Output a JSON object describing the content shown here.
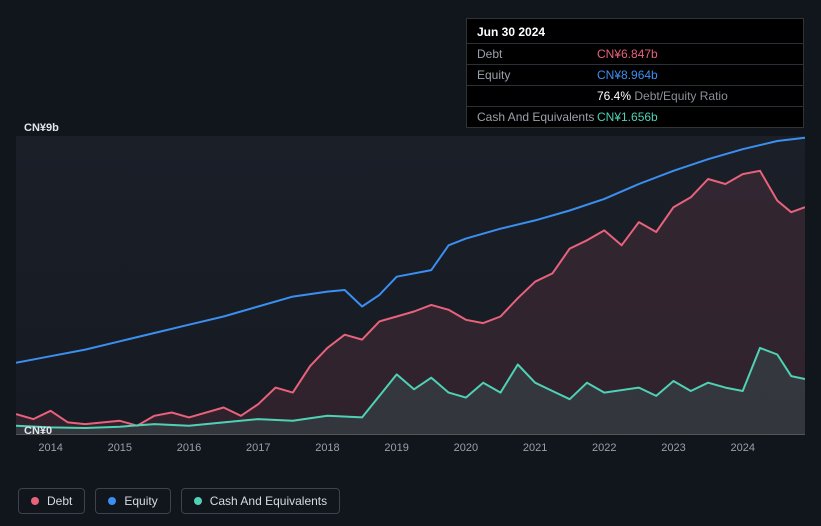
{
  "background_color": "#11151c",
  "plot_background": "#1a1f28",
  "tooltip": {
    "date": "Jun 30 2024",
    "rows": [
      {
        "label": "Debt",
        "value": "CN¥6.847b",
        "color": "#e8627c"
      },
      {
        "label": "Equity",
        "value": "CN¥8.964b",
        "color": "#3b8ff0"
      },
      {
        "label": "",
        "value": "76.4%",
        "suffix": "Debt/Equity Ratio",
        "color": "#ffffff"
      },
      {
        "label": "Cash And Equivalents",
        "value": "CN¥1.656b",
        "color": "#4fd1b5"
      }
    ]
  },
  "chart": {
    "type": "line",
    "y_max_label": "CN¥9b",
    "y_min_label": "CN¥0",
    "ylim": [
      0,
      9
    ],
    "x_years": [
      "2014",
      "2015",
      "2016",
      "2017",
      "2018",
      "2019",
      "2020",
      "2021",
      "2022",
      "2023",
      "2024"
    ],
    "x_range": [
      2013.5,
      2024.9
    ],
    "line_width": 2,
    "series": [
      {
        "name": "Equity",
        "color": "#3b8ff0",
        "fill_opacity": 0,
        "points": [
          [
            2013.5,
            2.15
          ],
          [
            2014,
            2.35
          ],
          [
            2014.5,
            2.55
          ],
          [
            2015,
            2.8
          ],
          [
            2015.5,
            3.05
          ],
          [
            2016,
            3.3
          ],
          [
            2016.5,
            3.55
          ],
          [
            2017,
            3.85
          ],
          [
            2017.5,
            4.15
          ],
          [
            2018,
            4.3
          ],
          [
            2018.25,
            4.35
          ],
          [
            2018.5,
            3.85
          ],
          [
            2018.75,
            4.2
          ],
          [
            2019,
            4.75
          ],
          [
            2019.5,
            4.95
          ],
          [
            2019.75,
            5.7
          ],
          [
            2020,
            5.9
          ],
          [
            2020.5,
            6.2
          ],
          [
            2021,
            6.45
          ],
          [
            2021.5,
            6.75
          ],
          [
            2022,
            7.1
          ],
          [
            2022.5,
            7.55
          ],
          [
            2023,
            7.95
          ],
          [
            2023.5,
            8.3
          ],
          [
            2024,
            8.6
          ],
          [
            2024.5,
            8.85
          ],
          [
            2024.9,
            8.95
          ]
        ]
      },
      {
        "name": "Debt",
        "color": "#e8627c",
        "fill_opacity": 0.12,
        "points": [
          [
            2013.5,
            0.6
          ],
          [
            2013.75,
            0.45
          ],
          [
            2014,
            0.7
          ],
          [
            2014.25,
            0.35
          ],
          [
            2014.5,
            0.3
          ],
          [
            2015,
            0.4
          ],
          [
            2015.25,
            0.25
          ],
          [
            2015.5,
            0.55
          ],
          [
            2015.75,
            0.65
          ],
          [
            2016,
            0.5
          ],
          [
            2016.5,
            0.8
          ],
          [
            2016.75,
            0.55
          ],
          [
            2017,
            0.9
          ],
          [
            2017.25,
            1.4
          ],
          [
            2017.5,
            1.25
          ],
          [
            2017.75,
            2.05
          ],
          [
            2018,
            2.6
          ],
          [
            2018.25,
            3.0
          ],
          [
            2018.5,
            2.85
          ],
          [
            2018.75,
            3.4
          ],
          [
            2019,
            3.55
          ],
          [
            2019.25,
            3.7
          ],
          [
            2019.5,
            3.9
          ],
          [
            2019.75,
            3.75
          ],
          [
            2020,
            3.45
          ],
          [
            2020.25,
            3.35
          ],
          [
            2020.5,
            3.55
          ],
          [
            2020.75,
            4.1
          ],
          [
            2021,
            4.6
          ],
          [
            2021.25,
            4.85
          ],
          [
            2021.5,
            5.6
          ],
          [
            2021.75,
            5.85
          ],
          [
            2022,
            6.15
          ],
          [
            2022.25,
            5.7
          ],
          [
            2022.5,
            6.4
          ],
          [
            2022.75,
            6.1
          ],
          [
            2023,
            6.85
          ],
          [
            2023.25,
            7.15
          ],
          [
            2023.5,
            7.7
          ],
          [
            2023.75,
            7.55
          ],
          [
            2024,
            7.85
          ],
          [
            2024.25,
            7.95
          ],
          [
            2024.5,
            7.05
          ],
          [
            2024.7,
            6.7
          ],
          [
            2024.9,
            6.85
          ]
        ]
      },
      {
        "name": "Cash And Equivalents",
        "color": "#4fd1b5",
        "fill_opacity": 0.12,
        "points": [
          [
            2013.5,
            0.25
          ],
          [
            2014,
            0.2
          ],
          [
            2014.5,
            0.18
          ],
          [
            2015,
            0.22
          ],
          [
            2015.5,
            0.3
          ],
          [
            2016,
            0.25
          ],
          [
            2016.5,
            0.35
          ],
          [
            2017,
            0.45
          ],
          [
            2017.5,
            0.4
          ],
          [
            2018,
            0.55
          ],
          [
            2018.5,
            0.5
          ],
          [
            2018.75,
            1.15
          ],
          [
            2019,
            1.8
          ],
          [
            2019.25,
            1.35
          ],
          [
            2019.5,
            1.7
          ],
          [
            2019.75,
            1.25
          ],
          [
            2020,
            1.1
          ],
          [
            2020.25,
            1.55
          ],
          [
            2020.5,
            1.25
          ],
          [
            2020.75,
            2.1
          ],
          [
            2021,
            1.55
          ],
          [
            2021.25,
            1.3
          ],
          [
            2021.5,
            1.05
          ],
          [
            2021.75,
            1.55
          ],
          [
            2022,
            1.25
          ],
          [
            2022.5,
            1.4
          ],
          [
            2022.75,
            1.15
          ],
          [
            2023,
            1.6
          ],
          [
            2023.25,
            1.3
          ],
          [
            2023.5,
            1.55
          ],
          [
            2023.75,
            1.4
          ],
          [
            2024,
            1.3
          ],
          [
            2024.25,
            2.6
          ],
          [
            2024.5,
            2.4
          ],
          [
            2024.7,
            1.75
          ],
          [
            2024.9,
            1.66
          ]
        ]
      }
    ]
  },
  "legend": {
    "items": [
      {
        "label": "Debt",
        "color": "#e8627c"
      },
      {
        "label": "Equity",
        "color": "#3b8ff0"
      },
      {
        "label": "Cash And Equivalents",
        "color": "#4fd1b5"
      }
    ]
  }
}
